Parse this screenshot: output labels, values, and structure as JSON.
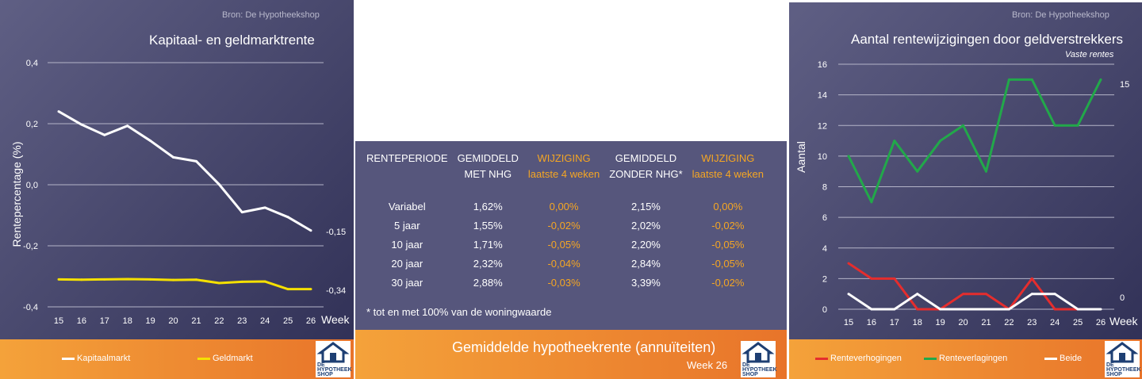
{
  "left": {
    "source": "Bron: De Hypotheekshop",
    "legend": [
      "Kapitaalmarkt",
      "Geldmarkt"
    ],
    "logo_text": [
      "DE",
      "HYPOTHEEK",
      "SHOP"
    ],
    "chart_data": {
      "type": "line",
      "title": "Kapitaal- en geldmarktrente",
      "xlabel": "Week",
      "ylabel": "Rentepercentage (%)",
      "x": [
        15,
        16,
        17,
        18,
        19,
        20,
        21,
        22,
        23,
        24,
        25,
        26
      ],
      "ylim": [
        -0.4,
        0.4
      ],
      "yticks": [
        "0,4",
        "0,2",
        "0,0",
        "-0,2",
        "-0,4"
      ],
      "grid": true,
      "legend_position": "bottom",
      "series": [
        {
          "name": "Kapitaalmarkt",
          "color": "#ffffff",
          "values": [
            0.24,
            0.197,
            0.163,
            0.193,
            0.144,
            0.09,
            0.077,
            0.001,
            -0.09,
            -0.075,
            -0.106,
            -0.15
          ],
          "end_label": "-0,15"
        },
        {
          "name": "Geldmarkt",
          "color": "#f5e000",
          "values": [
            -0.31,
            -0.311,
            -0.31,
            -0.309,
            -0.31,
            -0.312,
            -0.311,
            -0.322,
            -0.318,
            -0.317,
            -0.342,
            -0.342
          ],
          "end_label": "-0,34"
        }
      ]
    }
  },
  "table": {
    "headers": [
      {
        "line1": "RENTEPERIODE",
        "line2": "",
        "highlight": false
      },
      {
        "line1": "GEMIDDELD",
        "line2": "MET NHG",
        "highlight": false
      },
      {
        "line1": "WIJZIGING",
        "line2": "laatste 4 weken",
        "highlight": true
      },
      {
        "line1": "GEMIDDELD",
        "line2": "ZONDER NHG*",
        "highlight": false
      },
      {
        "line1": "WIJZIGING",
        "line2": "laatste 4 weken",
        "highlight": true
      }
    ],
    "rows": [
      [
        "Variabel",
        "1,62%",
        "0,00%",
        "2,15%",
        "0,00%"
      ],
      [
        "5 jaar",
        "1,55%",
        "-0,02%",
        "2,02%",
        "-0,02%"
      ],
      [
        "10 jaar",
        "1,71%",
        "-0,05%",
        "2,20%",
        "-0,05%"
      ],
      [
        "20 jaar",
        "2,32%",
        "-0,04%",
        "2,84%",
        "-0,05%"
      ],
      [
        "30 jaar",
        "2,88%",
        "-0,03%",
        "3,39%",
        "-0,02%"
      ]
    ],
    "note": "* tot en met 100% van de woningwaarde",
    "footer_title": "Gemiddelde hypotheekrente (annuïteiten)",
    "footer_week": "Week 26"
  },
  "right": {
    "source": "Bron: De Hypotheekshop",
    "legend": [
      "Renteverhogingen",
      "Renteverlagingen",
      "Beide"
    ],
    "logo_text": [
      "DE",
      "HYPOTHEEK",
      "SHOP"
    ],
    "chart_data": {
      "type": "line",
      "title": "Aantal rentewijzigingen door geldverstrekkers",
      "subtitle": "Vaste rentes",
      "xlabel": "Week",
      "ylabel": "Aantal",
      "x": [
        15,
        16,
        17,
        18,
        19,
        20,
        21,
        22,
        23,
        24,
        25,
        26
      ],
      "ylim": [
        0,
        16
      ],
      "yticks": [
        "16",
        "14",
        "12",
        "10",
        "8",
        "6",
        "4",
        "2",
        "0"
      ],
      "grid": true,
      "legend_position": "bottom",
      "series": [
        {
          "name": "Renteverhogingen",
          "color": "#e52d2d",
          "values": [
            3,
            2,
            2,
            0,
            0,
            1,
            1,
            0,
            2,
            0,
            0,
            null
          ],
          "end_label": ""
        },
        {
          "name": "Renteverlagingen",
          "color": "#22a84a",
          "values": [
            10,
            7,
            11,
            9,
            11,
            12,
            9,
            15,
            15,
            12,
            12,
            15
          ],
          "end_label": "15"
        },
        {
          "name": "Beide",
          "color": "#ffffff",
          "values": [
            1,
            0,
            0,
            1,
            0,
            0,
            0,
            0,
            1,
            1,
            0,
            0
          ],
          "end_label": "0"
        }
      ]
    }
  }
}
